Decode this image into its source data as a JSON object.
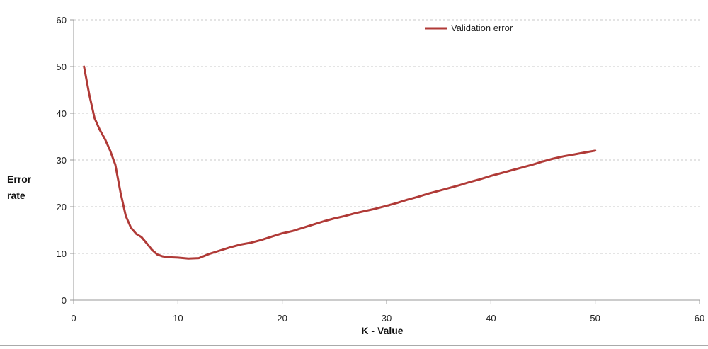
{
  "chart_data": {
    "type": "line",
    "title": "",
    "xlabel": "K - Value",
    "ylabel": "Error rate",
    "ylabel_lines": [
      "Error",
      "rate"
    ],
    "xlim": [
      0,
      60
    ],
    "ylim": [
      0,
      60
    ],
    "xticks": [
      0,
      10,
      20,
      30,
      40,
      50,
      60
    ],
    "yticks": [
      0,
      10,
      20,
      30,
      40,
      50,
      60
    ],
    "grid": "horizontal dashed",
    "legend_position": "top-right",
    "series": [
      {
        "name": "Validation error",
        "color": "#b03a37",
        "x": [
          1,
          1.5,
          2,
          2.5,
          3,
          3.5,
          4,
          4.5,
          5,
          5.5,
          6,
          6.5,
          7,
          7.5,
          8,
          8.5,
          9,
          10,
          11,
          12,
          13,
          14,
          15,
          16,
          17,
          18,
          19,
          20,
          21,
          22,
          23,
          24,
          25,
          26,
          27,
          28,
          29,
          30,
          31,
          32,
          33,
          34,
          35,
          36,
          37,
          38,
          39,
          40,
          41,
          42,
          43,
          44,
          45,
          46,
          47,
          48,
          49,
          50
        ],
        "values": [
          50,
          44,
          39,
          36.5,
          34.5,
          32,
          29,
          23,
          18,
          15.5,
          14.2,
          13.5,
          12.2,
          10.8,
          9.8,
          9.4,
          9.2,
          9.1,
          8.9,
          9.0,
          9.9,
          10.6,
          11.3,
          11.9,
          12.3,
          12.9,
          13.6,
          14.3,
          14.8,
          15.5,
          16.2,
          16.9,
          17.5,
          18.0,
          18.6,
          19.1,
          19.6,
          20.2,
          20.8,
          21.5,
          22.1,
          22.8,
          23.4,
          24.0,
          24.6,
          25.3,
          25.9,
          26.6,
          27.2,
          27.8,
          28.4,
          29.0,
          29.7,
          30.3,
          30.8,
          31.2,
          31.6,
          32.0
        ]
      }
    ]
  }
}
